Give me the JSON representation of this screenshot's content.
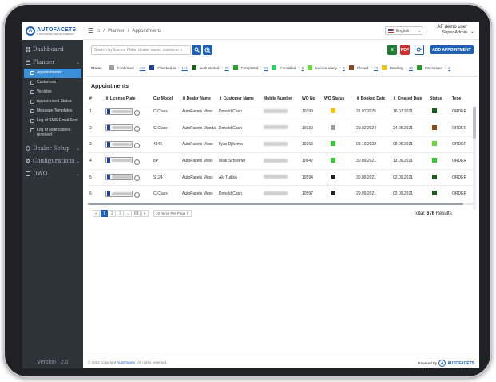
{
  "brand": {
    "name": "AUTOFACETS",
    "tagline": "A SOFTWARE GROUP COMPANY"
  },
  "sidebar": {
    "sections": [
      {
        "label": "Dashboard",
        "icon": "dashboard-icon"
      },
      {
        "label": "Planner",
        "icon": "planner-icon"
      }
    ],
    "planner_items": [
      {
        "label": "Appointments",
        "active": true
      },
      {
        "label": "Customers"
      },
      {
        "label": "Vehicles"
      },
      {
        "label": "Appointment Status"
      },
      {
        "label": "Message Templates"
      },
      {
        "label": "Log of SMS Email Sent"
      },
      {
        "label": "Log of Notifications received"
      }
    ],
    "more_sections": [
      {
        "label": "Dealer Setup",
        "icon": "dealer-icon"
      },
      {
        "label": "Configurations",
        "icon": "config-icon"
      },
      {
        "label": "DWO",
        "icon": "dwo-icon"
      }
    ],
    "version": "Version : 2.0"
  },
  "topbar": {
    "breadcrumb": [
      "Planner",
      "Appointments"
    ],
    "language": "English",
    "user_name": "AF demo user",
    "user_role": "Super Admin"
  },
  "toolbar": {
    "search_placeholder": "Search by licence Plate, dealer name, customer n",
    "add_label": "ADD APPOINTMENT"
  },
  "status": {
    "label": "Status",
    "items": [
      {
        "name": "Confirmed",
        "count": "434",
        "color": "#9e9e9e"
      },
      {
        "name": "Checked-in",
        "count": "141",
        "color": "#1f3f9a"
      },
      {
        "name": "work started",
        "count": "22",
        "color": "#1b5e20"
      },
      {
        "name": "Completed",
        "count": "11",
        "color": "#2e9e2e"
      },
      {
        "name": "Cancelled",
        "count": "5",
        "color": "#33cc66"
      },
      {
        "name": "Invoice ready",
        "count": "5",
        "color": "#66dd33"
      },
      {
        "name": "Closed",
        "count": "12",
        "color": "#8b4a1c"
      },
      {
        "name": "Pending",
        "count": "43",
        "color": "#f2c21a"
      },
      {
        "name": "Car arrived",
        "count": "6",
        "color": "#2a9a2a"
      }
    ]
  },
  "appointments": {
    "title": "Appointments",
    "columns": [
      "#",
      "License Plate",
      "Car Model",
      "Dealer Name",
      "Customer Name",
      "Mobile Number",
      "WO No",
      "WO Status",
      "Booked Date",
      "Created Date",
      "Status",
      "Type"
    ],
    "rows": [
      {
        "n": "1",
        "model": "C-Class",
        "dealer": "AutoFacets Moss",
        "customer": "Donald Cash",
        "wo": "10399",
        "wo_color": "#f2c21a",
        "booked": "21.07.2025",
        "created": "16.07.2021",
        "status_color": "#1b5e20",
        "type": "ORDER"
      },
      {
        "n": "2",
        "model": "C-Class",
        "dealer": "AutoFacets Mandal",
        "customer": "Donald Cash",
        "wo": "10330",
        "wo_color": "#9e9e9e",
        "booked": "29.02.2024",
        "created": "24.06.2021",
        "status_color": "#8b4a1c",
        "type": "ORDER"
      },
      {
        "n": "3",
        "model": "4545",
        "dealer": "AutoFacets Moss",
        "customer": "Ilyas Djikema",
        "wo": "10263",
        "wo_color": "#33cc33",
        "booked": "03.10.2022",
        "created": "08.06.2021",
        "status_color": "#66dd33",
        "type": "ORDER"
      },
      {
        "n": "4",
        "model": "8P",
        "dealer": "AutoFacets Moss",
        "customer": "Maik Schreiner",
        "wo": "10642",
        "wo_color": "#33cc33",
        "booked": "30.09.2021",
        "created": "13.09.2021",
        "status_color": "#33cc33",
        "type": "ORDER"
      },
      {
        "n": "5",
        "model": "S124",
        "dealer": "AutoFacets Moss",
        "customer": "Aki Tuikka",
        "wo": "10594",
        "wo_color": "#222222",
        "booked": "30.09.2021",
        "created": "02.09.2021",
        "status_color": "#1b5e20",
        "type": "ORDER"
      },
      {
        "n": "6",
        "model": "C-Class",
        "dealer": "AutoFacets Moss",
        "customer": "Donald Cash",
        "wo": "10597",
        "wo_color": "#222222",
        "booked": "29.09.2021",
        "created": "02.09.2021",
        "status_color": "#1b5e20",
        "type": "ORDER"
      }
    ]
  },
  "pagination": {
    "pages": [
      "«",
      "1",
      "2",
      "3",
      "...",
      "68",
      "»"
    ],
    "active": "1",
    "per_page": "10 Items Per Page",
    "total_label": "Total:",
    "total_value": "676",
    "total_suffix": "Results"
  },
  "footer": {
    "copyright_prefix": "© 2021 Copyright",
    "copyright_link": "AutoFacets",
    "copyright_suffix": ". All rights reserved.",
    "powered_by": "Powered By",
    "powered_logo": "AUTOFACETS"
  }
}
